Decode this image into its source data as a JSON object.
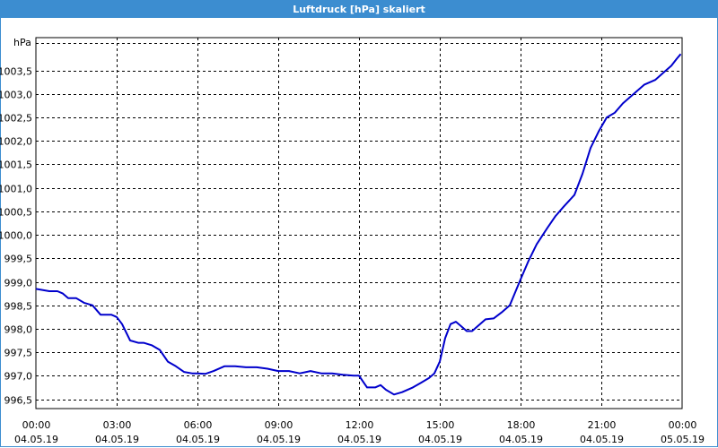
{
  "window": {
    "title": "Luftdruck [hPa] skaliert"
  },
  "colors": {
    "titlebar": "#3c8dd0",
    "line": "#0000cc",
    "grid": "#000000"
  },
  "chart_data": {
    "type": "line",
    "title": "Luftdruck [hPa] skaliert",
    "ylabel": "hPa",
    "xlabel": "",
    "ylim": [
      996.3,
      1004.2
    ],
    "xlim": [
      0,
      24
    ],
    "grid": true,
    "y_ticks": [
      "996,5",
      "997,0",
      "997,5",
      "998,0",
      "998,5",
      "999,0",
      "999,5",
      "1000,0",
      "1000,5",
      "1001,0",
      "1001,5",
      "1002,0",
      "1002,5",
      "1003,0",
      "1003,5"
    ],
    "y_tick_values": [
      996.5,
      997.0,
      997.5,
      998.0,
      998.5,
      999.0,
      999.5,
      1000.0,
      1000.5,
      1001.0,
      1001.5,
      1002.0,
      1002.5,
      1003.0,
      1003.5
    ],
    "x_ticks": [
      {
        "time": "00:00",
        "date": "04.05.19",
        "hour": 0
      },
      {
        "time": "03:00",
        "date": "04.05.19",
        "hour": 3
      },
      {
        "time": "06:00",
        "date": "04.05.19",
        "hour": 6
      },
      {
        "time": "09:00",
        "date": "04.05.19",
        "hour": 9
      },
      {
        "time": "12:00",
        "date": "04.05.19",
        "hour": 12
      },
      {
        "time": "15:00",
        "date": "04.05.19",
        "hour": 15
      },
      {
        "time": "18:00",
        "date": "04.05.19",
        "hour": 18
      },
      {
        "time": "21:00",
        "date": "04.05.19",
        "hour": 21
      },
      {
        "time": "00:00",
        "date": "05.05.19",
        "hour": 24
      }
    ],
    "series": [
      {
        "x": [
          0,
          0.5,
          0.8,
          1.0,
          1.2,
          1.5,
          1.8,
          2.1,
          2.4,
          2.7,
          2.8,
          3.0,
          3.2,
          3.5,
          3.8,
          4.0,
          4.3,
          4.6,
          4.9,
          5.2,
          5.5,
          5.8,
          6.0,
          6.3,
          6.6,
          7.0,
          7.4,
          7.8,
          8.2,
          8.6,
          9.0,
          9.4,
          9.8,
          10.2,
          10.6,
          11.0,
          11.4,
          11.8,
          12.0,
          12.3,
          12.6,
          12.8,
          13.0,
          13.3,
          13.6,
          14.0,
          14.3,
          14.6,
          14.8,
          15.0,
          15.2,
          15.4,
          15.6,
          15.8,
          16.0,
          16.2,
          16.4,
          16.7,
          17.0,
          17.3,
          17.6,
          18.0,
          18.3,
          18.6,
          19.0,
          19.3,
          19.6,
          20.0,
          20.3,
          20.6,
          20.9,
          21.2,
          21.5,
          21.8,
          22.2,
          22.6,
          23.0,
          23.3,
          23.6,
          23.8,
          23.95
        ],
        "y": [
          998.85,
          998.8,
          998.8,
          998.75,
          998.65,
          998.65,
          998.55,
          998.5,
          998.3,
          998.3,
          998.3,
          998.25,
          998.1,
          997.75,
          997.7,
          997.7,
          997.65,
          997.55,
          997.3,
          997.2,
          997.08,
          997.05,
          997.05,
          997.04,
          997.1,
          997.2,
          997.2,
          997.18,
          997.18,
          997.15,
          997.1,
          997.1,
          997.05,
          997.1,
          997.05,
          997.05,
          997.02,
          997.0,
          997.0,
          996.75,
          996.75,
          996.8,
          996.7,
          996.6,
          996.65,
          996.75,
          996.85,
          996.95,
          997.05,
          997.3,
          997.8,
          998.1,
          998.15,
          998.05,
          997.95,
          997.95,
          998.05,
          998.2,
          998.22,
          998.35,
          998.5,
          999.05,
          999.45,
          999.8,
          1000.15,
          1000.4,
          1000.6,
          1000.85,
          1001.3,
          1001.85,
          1002.2,
          1002.5,
          1002.6,
          1002.8,
          1003.0,
          1003.2,
          1003.3,
          1003.45,
          1003.6,
          1003.75,
          1003.85
        ]
      }
    ]
  }
}
